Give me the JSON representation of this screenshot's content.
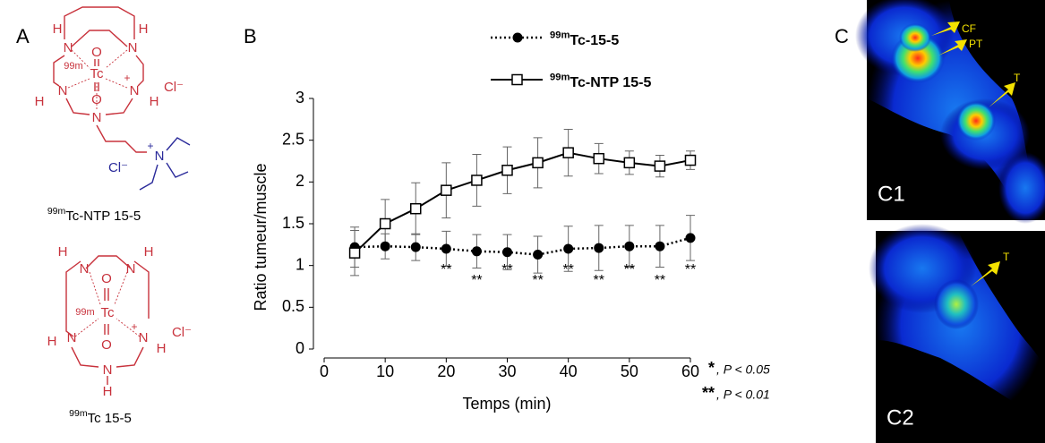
{
  "panel_a": {
    "label": "A",
    "structures": [
      {
        "atoms": [
          "H",
          "N",
          "N",
          "H",
          "O",
          "99m",
          "Tc",
          "N",
          "+",
          "N",
          "H",
          "H",
          "O",
          "N",
          "Cl⁻",
          "+",
          "N",
          "Cl⁻"
        ],
        "caption": "99mTc-NTP 15-5"
      },
      {
        "atoms": [
          "H",
          "N",
          "O",
          "N",
          "H",
          "99m",
          "Tc",
          "H",
          "N",
          "+",
          "N",
          "H",
          "O",
          "N",
          "H",
          "Cl⁻"
        ],
        "caption": "99mTc 15-5"
      }
    ]
  },
  "chart_data": {
    "type": "line",
    "panel_label": "B",
    "x_label": "Temps (min)",
    "y_label": "Ratio tumeur/muscle",
    "xlim": [
      0,
      60
    ],
    "xticks": [
      0,
      10,
      20,
      30,
      40,
      50,
      60
    ],
    "ylim": [
      0,
      3
    ],
    "yticks": [
      0,
      0.5,
      1,
      1.5,
      2,
      2.5,
      3
    ],
    "x": [
      5,
      10,
      15,
      20,
      25,
      30,
      35,
      40,
      45,
      50,
      55,
      60
    ],
    "series": [
      {
        "name": "99mTc-15-5",
        "color": "#000000",
        "marker": "filled-circle",
        "line": "dotted",
        "values": [
          1.22,
          1.23,
          1.22,
          1.2,
          1.17,
          1.16,
          1.13,
          1.2,
          1.21,
          1.23,
          1.23,
          1.33
        ],
        "errors": [
          0.24,
          0.15,
          0.16,
          0.21,
          0.2,
          0.21,
          0.22,
          0.27,
          0.27,
          0.25,
          0.25,
          0.27
        ]
      },
      {
        "name": "99mTc-NTP 15-5",
        "color": "#000000",
        "marker": "open-square",
        "line": "solid",
        "values": [
          1.15,
          1.5,
          1.68,
          1.9,
          2.02,
          2.14,
          2.23,
          2.35,
          2.28,
          2.23,
          2.19,
          2.26
        ],
        "errors": [
          0.27,
          0.29,
          0.31,
          0.33,
          0.31,
          0.28,
          0.3,
          0.28,
          0.18,
          0.14,
          0.13,
          0.11
        ]
      }
    ],
    "significance": [
      {
        "x": 20,
        "label": "**"
      },
      {
        "x": 25,
        "label": "**"
      },
      {
        "x": 30,
        "label": "**"
      },
      {
        "x": 35,
        "label": "**"
      },
      {
        "x": 40,
        "label": "**"
      },
      {
        "x": 45,
        "label": "**"
      },
      {
        "x": 50,
        "label": "**"
      },
      {
        "x": 55,
        "label": "**"
      },
      {
        "x": 60,
        "label": "**"
      }
    ],
    "notes": [
      {
        "symbol": "*",
        "text": ", P < 0.05"
      },
      {
        "symbol": "**",
        "text": ", P < 0.01"
      }
    ]
  },
  "panel_c": {
    "label": "C",
    "images": [
      {
        "label": "C1",
        "annotations": [
          "CF",
          "PT",
          "T"
        ]
      },
      {
        "label": "C2",
        "annotations": [
          "T"
        ]
      }
    ]
  }
}
